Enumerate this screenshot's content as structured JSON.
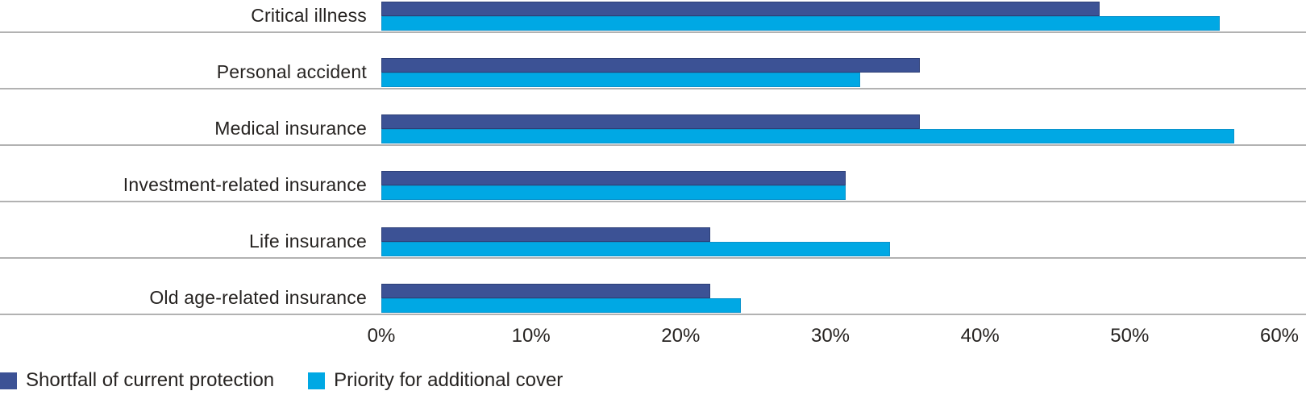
{
  "chart_data": {
    "type": "bar",
    "orientation": "horizontal",
    "categories": [
      "Critical illness",
      "Personal accident",
      "Medical insurance",
      "Investment-related insurance",
      "Life insurance",
      "Old age-related insurance"
    ],
    "series": [
      {
        "name": "Shortfall of current protection",
        "color": "#3c5295",
        "border_color": "#2d3f77",
        "values": [
          48,
          36,
          36,
          31,
          22,
          22
        ]
      },
      {
        "name": "Priority for additional cover",
        "color": "#00a8e4",
        "border_color": "#0a93cc",
        "values": [
          56,
          32,
          57,
          31,
          34,
          24
        ]
      }
    ],
    "x_ticks": [
      "0%",
      "10%",
      "20%",
      "30%",
      "40%",
      "50%",
      "60%"
    ],
    "xlim": [
      0,
      60
    ],
    "grid": "horizontal row separator lines, full width",
    "legend_position": "bottom-left",
    "value_unit": "percent"
  },
  "style": {
    "gridline_color": "#b2b2b2",
    "text_color": "#262321",
    "background": "#ffffff"
  }
}
